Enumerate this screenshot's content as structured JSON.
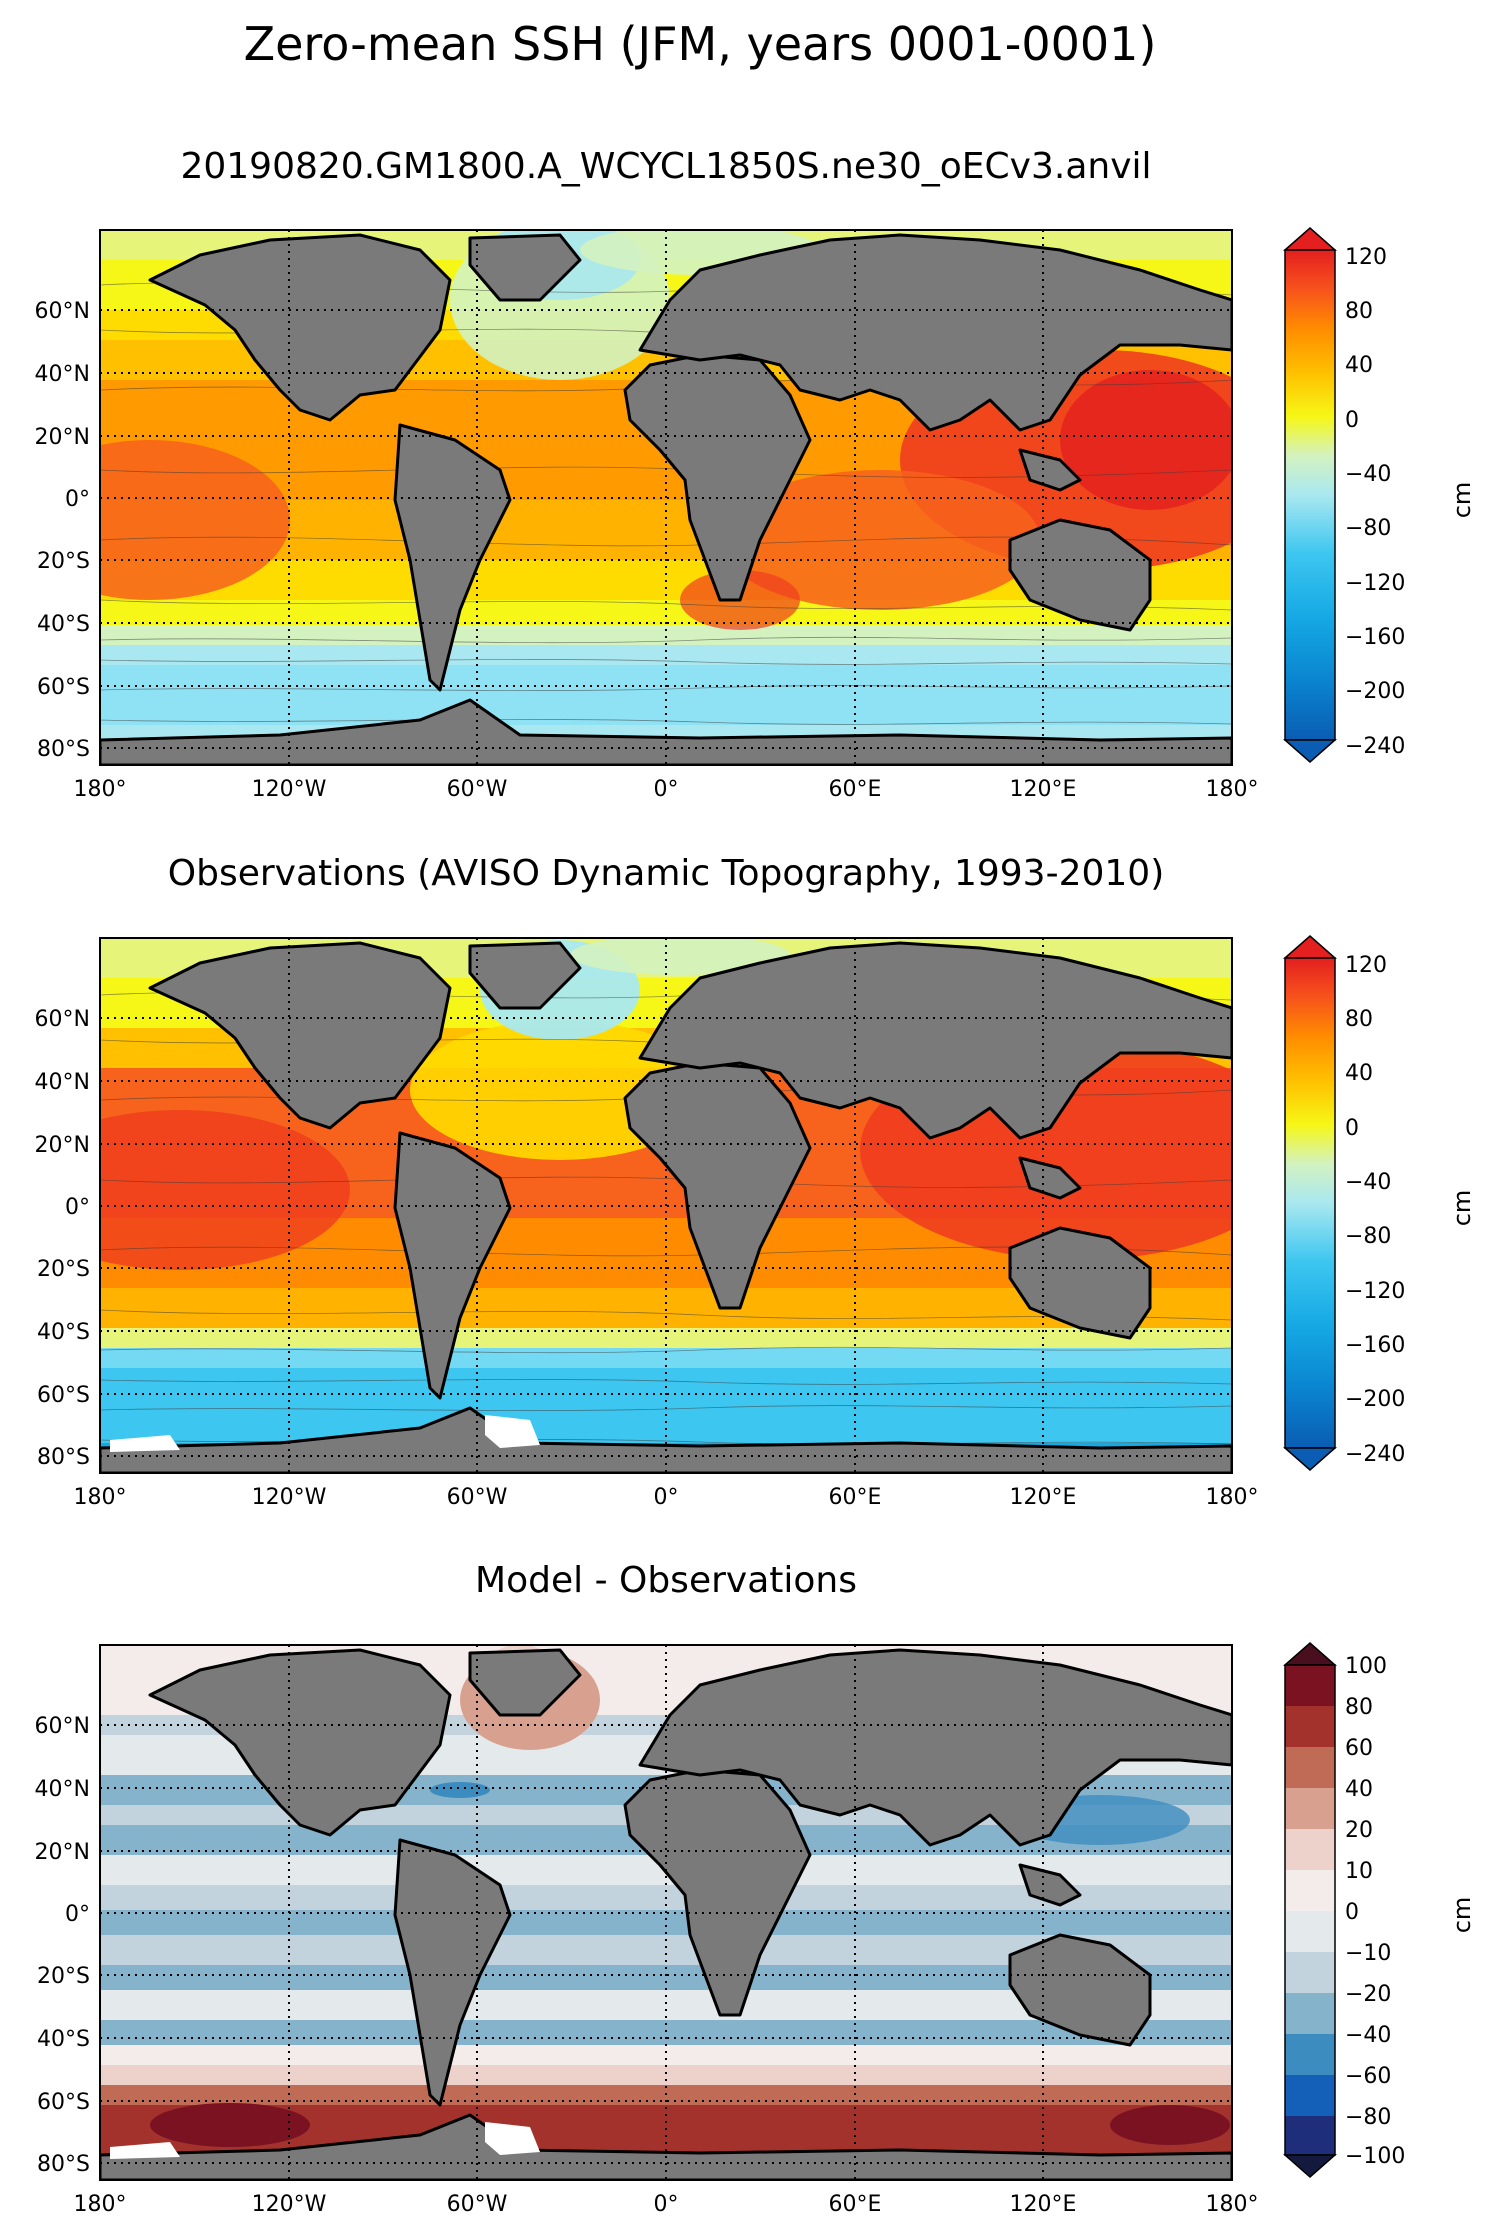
{
  "figure": {
    "title": "Zero-mean SSH (JFM, years 0001-0001)"
  },
  "panels": [
    {
      "title": "20190820.GM1800.A_WCYCL1850S.ne30_oECv3.anvil",
      "kind": "ssh",
      "colorbar": {
        "unit": "cm",
        "ticks": [
          "120",
          "80",
          "40",
          "0",
          "−40",
          "−80",
          "−120",
          "−160",
          "−200",
          "−240"
        ],
        "extend": "both"
      }
    },
    {
      "title": "Observations (AVISO Dynamic Topography, 1993-2010)",
      "kind": "ssh",
      "colorbar": {
        "unit": "cm",
        "ticks": [
          "120",
          "80",
          "40",
          "0",
          "−40",
          "−80",
          "−120",
          "−160",
          "−200",
          "−240"
        ],
        "extend": "both"
      }
    },
    {
      "title": "Model - Observations",
      "kind": "diff",
      "colorbar": {
        "unit": "cm",
        "ticks": [
          "100",
          "80",
          "60",
          "40",
          "20",
          "10",
          "0",
          "−10",
          "−20",
          "−40",
          "−60",
          "−80",
          "−100"
        ],
        "extend": "both"
      }
    }
  ],
  "axes": {
    "lat_ticks": [
      "60°N",
      "40°N",
      "20°N",
      "0°",
      "20°S",
      "40°S",
      "60°S",
      "80°S"
    ],
    "lon_ticks": [
      "180°",
      "120°W",
      "60°W",
      "0°",
      "60°E",
      "120°E",
      "180°"
    ]
  },
  "colors": {
    "land": "#7a7a7a",
    "ssh_scale": [
      "#0a5db3",
      "#0a84cf",
      "#15a9e4",
      "#3dc6f0",
      "#74daf4",
      "#a9e8f0",
      "#d3f2c0",
      "#e6f57a",
      "#f6f716",
      "#ffdc00",
      "#ffb300",
      "#ff8c00",
      "#f7621c",
      "#ef3d1e",
      "#e41f1f"
    ],
    "diff_scale": [
      "#1f2e7a",
      "#1460b8",
      "#3d8cbf",
      "#86b3cc",
      "#c3d3de",
      "#e4e9ec",
      "#f3eceb",
      "#ecd2cb",
      "#d8a08f",
      "#bf6b55",
      "#a3322c",
      "#7b1222"
    ]
  }
}
